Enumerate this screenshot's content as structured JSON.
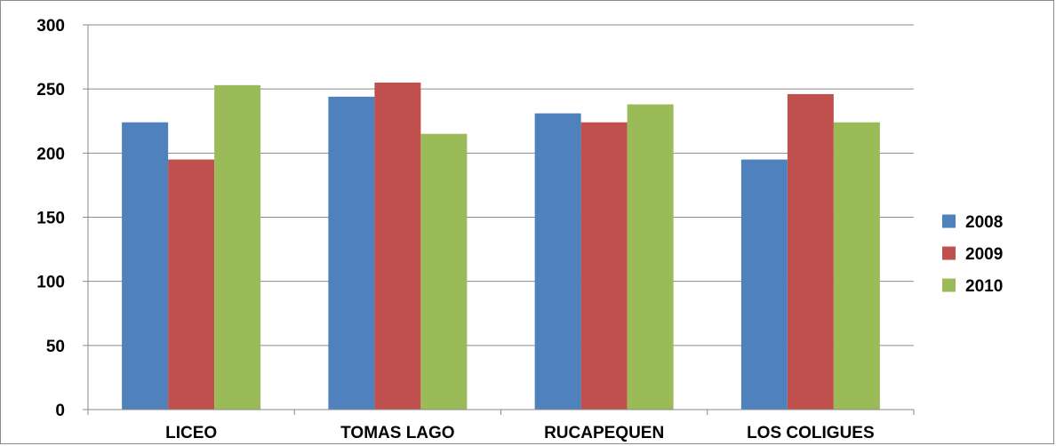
{
  "chart_data": {
    "type": "bar",
    "title": "",
    "xlabel": "",
    "ylabel": "",
    "categories": [
      "LICEO",
      "TOMAS LAGO",
      "RUCAPEQUEN",
      "LOS COLIGUES"
    ],
    "series": [
      {
        "name": "2008",
        "color": "#4F81BD",
        "values": [
          224,
          244,
          231,
          195
        ]
      },
      {
        "name": "2009",
        "color": "#C0504D",
        "values": [
          195,
          255,
          224,
          246
        ]
      },
      {
        "name": "2010",
        "color": "#9BBB59",
        "values": [
          253,
          215,
          238,
          224
        ]
      }
    ],
    "ylim": [
      0,
      300
    ],
    "yticks": [
      0,
      50,
      100,
      150,
      200,
      250,
      300
    ],
    "grid": true,
    "legend": "right"
  }
}
